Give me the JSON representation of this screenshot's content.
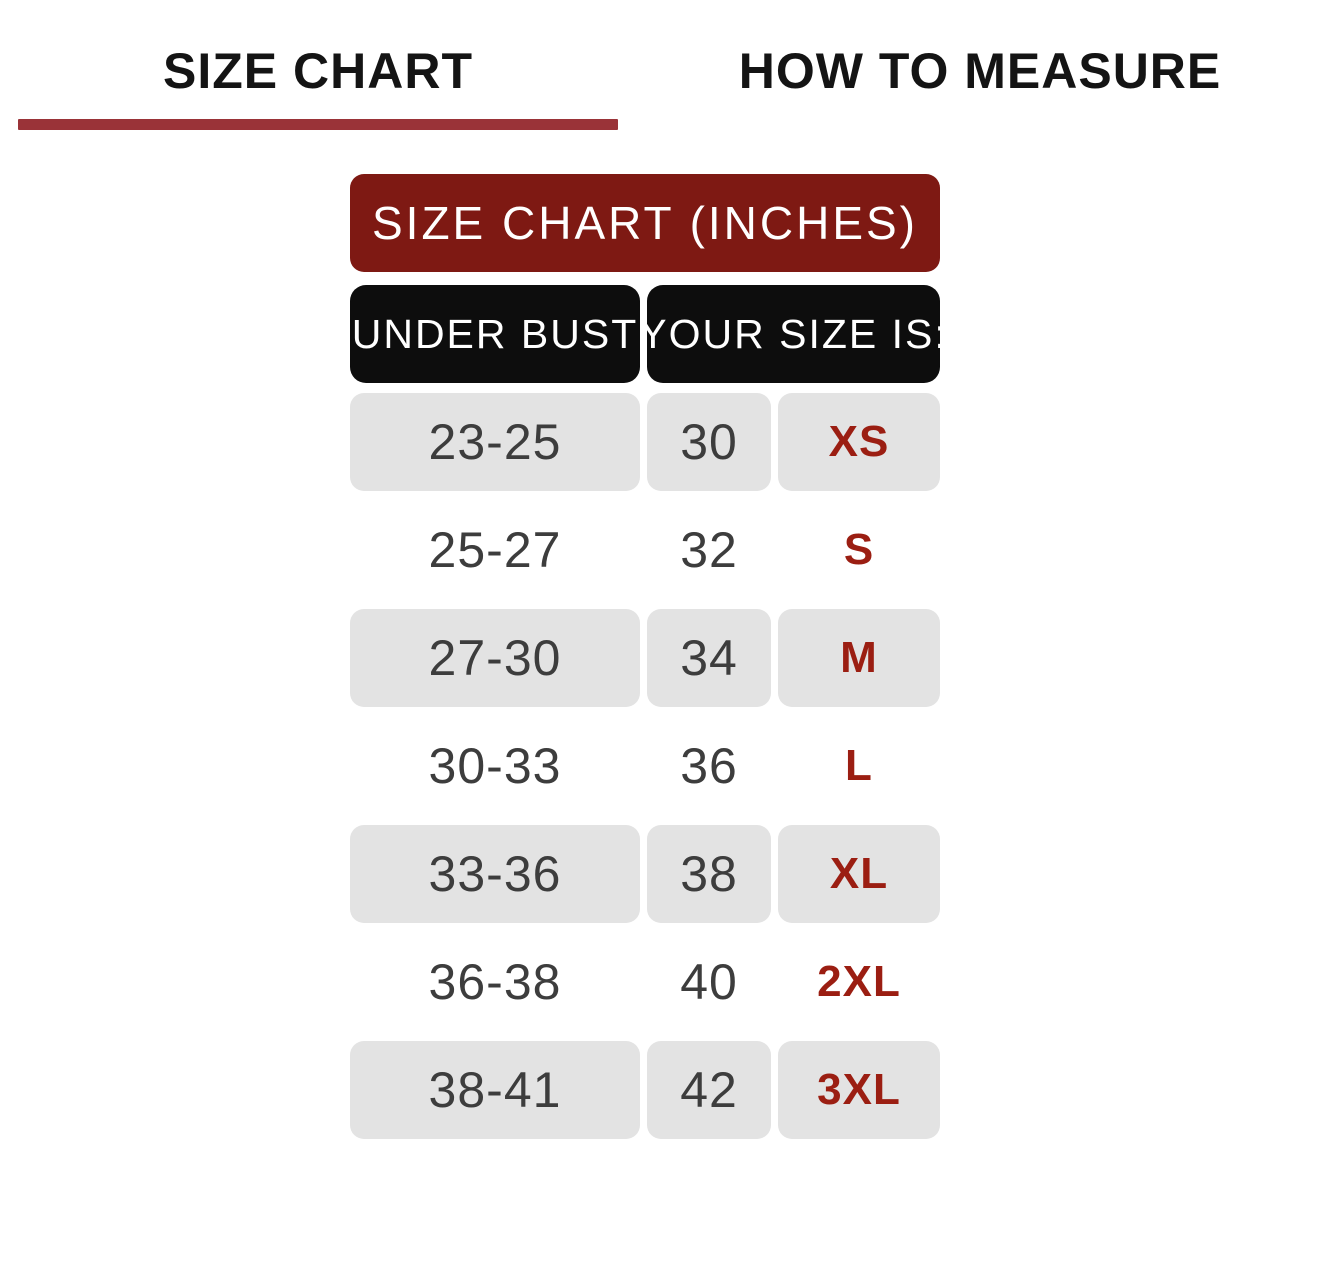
{
  "tabs": [
    {
      "label": "SIZE CHART",
      "active": true
    },
    {
      "label": "HOW TO MEASURE",
      "active": false
    }
  ],
  "size_chart": {
    "title": "SIZE CHART (INCHES)",
    "column_headers": [
      "UNDER BUST",
      "YOUR SIZE IS:"
    ],
    "rows": [
      {
        "under_bust": "23-25",
        "number": "30",
        "size": "XS"
      },
      {
        "under_bust": "25-27",
        "number": "32",
        "size": "S"
      },
      {
        "under_bust": "27-30",
        "number": "34",
        "size": "M"
      },
      {
        "under_bust": "30-33",
        "number": "36",
        "size": "L"
      },
      {
        "under_bust": "33-36",
        "number": "38",
        "size": "XL"
      },
      {
        "under_bust": "36-38",
        "number": "40",
        "size": "2XL"
      },
      {
        "under_bust": "38-41",
        "number": "42",
        "size": "3XL"
      }
    ]
  },
  "colors": {
    "title_bar_red": "#7E1913",
    "tab_underline_red": "#9A3338",
    "size_label_red": "#9B1E12",
    "header_black": "#0D0D0D",
    "row_gray": "#E3E3E3",
    "cell_text_gray": "#3D3D3D"
  }
}
